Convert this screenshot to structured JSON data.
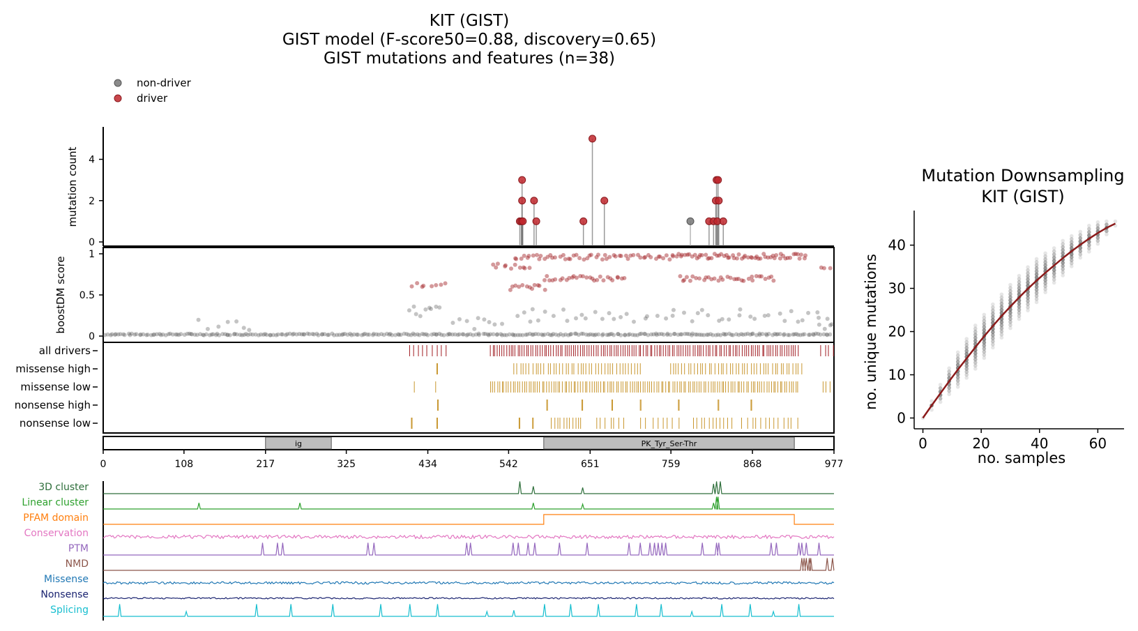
{
  "main_title": {
    "line1": "KIT (GIST)",
    "line2": "GIST model (F-score50=0.88, discovery=0.65)",
    "line3": "GIST mutations and features (n=38)"
  },
  "legend": [
    {
      "label": "non-driver",
      "color": "#777777"
    },
    {
      "label": "driver",
      "color": "#c0272d"
    }
  ],
  "colors": {
    "driver": "#a01c22",
    "driver_dot": "#c0272d",
    "nondriver_dot": "#666666",
    "track_gold": "#c8962e",
    "domain_fill": "#bdbdbd"
  },
  "chart_data": [
    {
      "type": "scatter",
      "name": "lollipop",
      "ylabel": "mutation count",
      "ylim": [
        0,
        5.3
      ],
      "yticks": [
        0,
        2,
        4
      ],
      "xlim": [
        0,
        977
      ],
      "points": [
        {
          "x": 557,
          "y": 1,
          "driver": true
        },
        {
          "x": 559,
          "y": 1,
          "driver": true
        },
        {
          "x": 560,
          "y": 3,
          "driver": true
        },
        {
          "x": 560,
          "y": 2,
          "driver": true
        },
        {
          "x": 561,
          "y": 1,
          "driver": true
        },
        {
          "x": 576,
          "y": 2,
          "driver": true
        },
        {
          "x": 579,
          "y": 1,
          "driver": true
        },
        {
          "x": 642,
          "y": 1,
          "driver": true
        },
        {
          "x": 654,
          "y": 5,
          "driver": true
        },
        {
          "x": 670,
          "y": 2,
          "driver": true
        },
        {
          "x": 785,
          "y": 1,
          "driver": false
        },
        {
          "x": 810,
          "y": 1,
          "driver": true
        },
        {
          "x": 816,
          "y": 1,
          "driver": true
        },
        {
          "x": 819,
          "y": 2,
          "driver": true
        },
        {
          "x": 820,
          "y": 3,
          "driver": true
        },
        {
          "x": 821,
          "y": 1,
          "driver": true
        },
        {
          "x": 822,
          "y": 3,
          "driver": true
        },
        {
          "x": 823,
          "y": 2,
          "driver": true
        },
        {
          "x": 829,
          "y": 1,
          "driver": true
        }
      ]
    },
    {
      "type": "scatter",
      "name": "boostDM",
      "ylabel": "boostDM score",
      "ylim": [
        -0.05,
        1.07
      ],
      "yticks": [
        0,
        0.5,
        1
      ],
      "xlim": [
        0,
        977
      ],
      "driver_bands": [
        {
          "x0": 413,
          "x1": 460,
          "y": 0.62,
          "step": 6
        },
        {
          "x0": 520,
          "x1": 570,
          "y": 0.85,
          "step": 5
        },
        {
          "x0": 545,
          "x1": 590,
          "y": 0.59,
          "step": 4
        },
        {
          "x0": 550,
          "x1": 760,
          "y": 0.96,
          "step": 4
        },
        {
          "x0": 590,
          "x1": 700,
          "y": 0.7,
          "step": 4
        },
        {
          "x0": 760,
          "x1": 940,
          "y": 0.97,
          "step": 3
        },
        {
          "x0": 770,
          "x1": 900,
          "y": 0.7,
          "step": 4
        },
        {
          "x0": 960,
          "x1": 977,
          "y": 0.84,
          "step": 5
        }
      ],
      "nondriver_bands": [
        {
          "x0": 0,
          "x1": 977,
          "y": 0.01,
          "step": 3
        },
        {
          "x0": 125,
          "x1": 200,
          "y": 0.15,
          "step": 12
        },
        {
          "x0": 410,
          "x1": 450,
          "y": 0.3,
          "step": 5
        },
        {
          "x0": 470,
          "x1": 540,
          "y": 0.15,
          "step": 8
        },
        {
          "x0": 550,
          "x1": 960,
          "y": 0.25,
          "step": 9
        },
        {
          "x0": 955,
          "x1": 977,
          "y": 0.15,
          "step": 4
        }
      ]
    },
    {
      "type": "table",
      "name": "mutation-tracks",
      "rows": [
        {
          "label": "all drivers",
          "color": "#a01c22",
          "ranges": [
            [
              410,
              460,
              6
            ],
            [
              518,
              930,
              3
            ],
            [
              960,
              975,
              5
            ]
          ]
        },
        {
          "label": "missense high",
          "color": "#c8962e",
          "ranges": [
            [
              446,
              447,
              1
            ],
            [
              550,
              720,
              4
            ],
            [
              758,
              935,
              4
            ]
          ]
        },
        {
          "label": "missense low",
          "color": "#c8962e",
          "ranges": [
            [
              412,
              450,
              38
            ],
            [
              518,
              930,
              3
            ],
            [
              962,
              975,
              5
            ]
          ]
        },
        {
          "label": "nonsense high",
          "color": "#c8962e",
          "ranges": [
            [
              447,
              448,
              1
            ],
            [
              593,
              594,
              1
            ],
            [
              640,
              641,
              1
            ],
            [
              680,
              681,
              1
            ],
            [
              718,
              719,
              1
            ],
            [
              769,
              770,
              1
            ],
            [
              822,
              823,
              1
            ],
            [
              866,
              867,
              1
            ]
          ]
        },
        {
          "label": "nonsense low",
          "color": "#c8962e",
          "ranges": [
            [
              412,
              413,
              1
            ],
            [
              446,
              447,
              1
            ],
            [
              556,
              557,
              1
            ],
            [
              574,
              575,
              1
            ],
            [
              599,
              640,
              4
            ],
            [
              660,
              700,
              6
            ],
            [
              720,
              770,
              7
            ],
            [
              790,
              840,
              5
            ],
            [
              855,
              930,
              6
            ]
          ]
        }
      ]
    },
    {
      "type": "bar",
      "name": "protein-domains",
      "xlim": [
        0,
        977
      ],
      "xticks": [
        0,
        108,
        217,
        325,
        434,
        542,
        651,
        759,
        868,
        977
      ],
      "domains": [
        {
          "label": "ig",
          "start": 217,
          "end": 305
        },
        {
          "label": "PK_Tyr_Ser-Thr",
          "start": 589,
          "end": 924
        }
      ]
    },
    {
      "type": "line",
      "name": "feature-tracks",
      "xlim": [
        0,
        977
      ],
      "series": [
        {
          "name": "3D cluster",
          "color": "#2d6e3a",
          "peaks": [
            [
              557,
              1
            ],
            [
              575,
              0.6
            ],
            [
              641,
              0.5
            ],
            [
              816,
              0.8
            ],
            [
              820,
              1
            ],
            [
              825,
              1
            ]
          ]
        },
        {
          "name": "Linear cluster",
          "color": "#2ca02c",
          "peaks": [
            [
              128,
              0.5
            ],
            [
              263,
              0.5
            ],
            [
              575,
              0.5
            ],
            [
              641,
              0.4
            ],
            [
              816,
              0.5
            ],
            [
              820,
              1
            ],
            [
              822,
              1
            ]
          ]
        },
        {
          "name": "PFAM domain",
          "color": "#ff7f0e",
          "steps": [
            [
              0,
              0
            ],
            [
              589,
              1
            ],
            [
              924,
              0
            ]
          ]
        },
        {
          "name": "Conservation",
          "color": "#e377c2",
          "noise": 0.35
        },
        {
          "name": "PTM",
          "color": "#9467bd",
          "peaks": [
            [
              213,
              1
            ],
            [
              233,
              1
            ],
            [
              240,
              1
            ],
            [
              354,
              1
            ],
            [
              362,
              1
            ],
            [
              486,
              1
            ],
            [
              491,
              1
            ],
            [
              548,
              1
            ],
            [
              555,
              1
            ],
            [
              568,
              1
            ],
            [
              577,
              1
            ],
            [
              610,
              1
            ],
            [
              647,
              1
            ],
            [
              703,
              1
            ],
            [
              718,
              1
            ],
            [
              731,
              1
            ],
            [
              737,
              1
            ],
            [
              742,
              1
            ],
            [
              747,
              1
            ],
            [
              752,
              1
            ],
            [
              801,
              1
            ],
            [
              820,
              1
            ],
            [
              823,
              1
            ],
            [
              893,
              1
            ],
            [
              900,
              1
            ],
            [
              930,
              1
            ],
            [
              934,
              1
            ],
            [
              940,
              1
            ],
            [
              957,
              1
            ]
          ]
        },
        {
          "name": "NMD",
          "color": "#8c564b",
          "peaks": [
            [
              934,
              1
            ],
            [
              937,
              1
            ],
            [
              940,
              1
            ],
            [
              944,
              1
            ],
            [
              946,
              1
            ],
            [
              968,
              1
            ],
            [
              975,
              1
            ]
          ]
        },
        {
          "name": "Missense",
          "color": "#1f77b4",
          "noise": 0.25
        },
        {
          "name": "Nonsense",
          "color": "#1a2370",
          "noise": 0.15
        },
        {
          "name": "Splicing",
          "color": "#17becf",
          "peaks": [
            [
              22,
              1
            ],
            [
              111,
              0.4
            ],
            [
              205,
              1
            ],
            [
              251,
              1
            ],
            [
              307,
              1
            ],
            [
              371,
              1
            ],
            [
              410,
              1
            ],
            [
              447,
              1
            ],
            [
              513,
              0.4
            ],
            [
              549,
              0.5
            ],
            [
              590,
              1
            ],
            [
              625,
              1
            ],
            [
              662,
              1
            ],
            [
              713,
              1
            ],
            [
              746,
              1
            ],
            [
              787,
              0.4
            ],
            [
              827,
              1
            ],
            [
              865,
              1
            ],
            [
              896,
              0.4
            ],
            [
              930,
              1
            ]
          ]
        }
      ]
    },
    {
      "type": "scatter",
      "name": "downsampling",
      "title": "Mutation Downsampling\nKIT (GIST)",
      "title_line1": "Mutation Downsampling",
      "title_line2": "KIT (GIST)",
      "xlabel": "no. samples",
      "ylabel": "no. unique mutations",
      "xlim": [
        -3,
        69
      ],
      "ylim": [
        -2.5,
        48
      ],
      "xticks": [
        0,
        20,
        40,
        60
      ],
      "yticks": [
        0,
        10,
        20,
        30,
        40
      ],
      "x": [
        0,
        3,
        6,
        9,
        12,
        15,
        18,
        21,
        24,
        27,
        30,
        33,
        36,
        39,
        42,
        45,
        48,
        51,
        54,
        57,
        60,
        63,
        66
      ],
      "y": [
        0,
        2.9,
        5.7,
        8.5,
        11.2,
        13.8,
        16.4,
        18.9,
        21.3,
        23.6,
        25.8,
        27.9,
        29.9,
        31.8,
        33.6,
        35.3,
        37,
        38.6,
        40.1,
        41.5,
        42.8,
        44,
        45
      ],
      "spread": [
        0,
        1,
        2,
        3,
        4,
        4.5,
        5,
        5,
        5,
        5,
        5,
        5,
        5,
        5,
        4.5,
        4,
        4,
        3.5,
        3,
        3,
        2.5,
        1.5,
        0.5
      ]
    }
  ]
}
